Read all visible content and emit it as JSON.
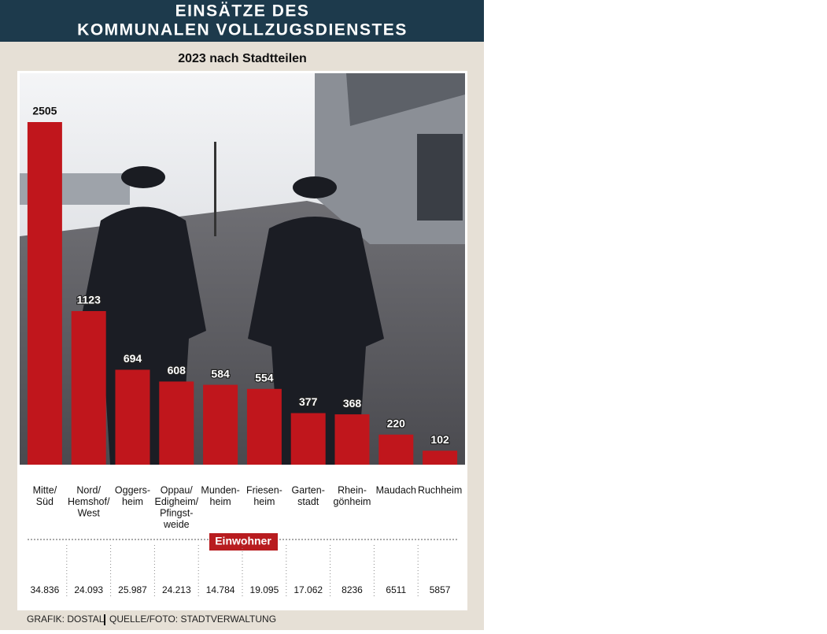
{
  "chart_data": {
    "type": "bar",
    "title": [
      "EINSÄTZE DES",
      "KOMMUNALEN VOLLZUGSDIENSTES"
    ],
    "subtitle": "2023 nach Stadtteilen",
    "categories": [
      [
        "Mitte/",
        "Süd"
      ],
      [
        "Nord/",
        "Hemshof/",
        "West"
      ],
      [
        "Oggers-",
        "heim"
      ],
      [
        "Oppau/",
        "Edigheim/",
        "Pfingst-",
        "weide"
      ],
      [
        "Munden-",
        "heim"
      ],
      [
        "Friesen-",
        "heim"
      ],
      [
        "Garten-",
        "stadt"
      ],
      [
        "Rhein-",
        "gönheim"
      ],
      [
        "Maudach"
      ],
      [
        "Ruchheim"
      ]
    ],
    "values": [
      2505,
      1123,
      694,
      608,
      584,
      554,
      377,
      368,
      220,
      102
    ],
    "color": "#c0161c",
    "residents": {
      "label": "Einwohner",
      "values": [
        34836,
        24093,
        25987,
        24213,
        14784,
        19095,
        17062,
        8236,
        6511,
        5857
      ],
      "value_labels": [
        "34.836",
        "24.093",
        "25.987",
        "24.213",
        "14.784",
        "19.095",
        "17.062",
        "8236",
        "6511",
        "5857"
      ]
    },
    "credits": [
      "GRAFIK: DOSTAL",
      "QUELLE/FOTO: STADTVERWALTUNG"
    ]
  }
}
